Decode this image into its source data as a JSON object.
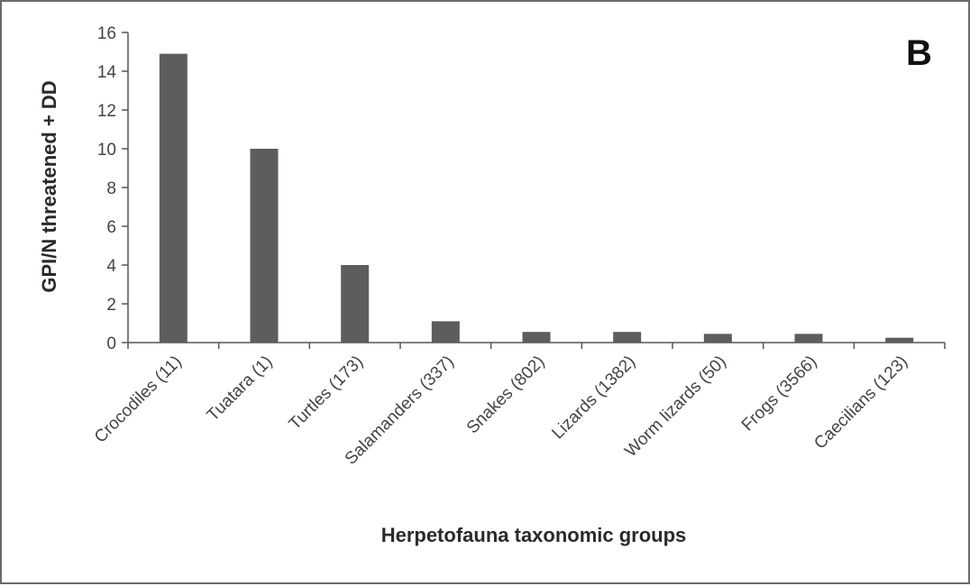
{
  "chart_data": {
    "type": "bar",
    "panel_label": "B",
    "xlabel": "Herpetofauna taxonomic groups",
    "ylabel": "GPI/N threatened + DD",
    "ylim": [
      0,
      16
    ],
    "yticks": [
      "0",
      "2",
      "4",
      "6",
      "8",
      "10",
      "12",
      "14",
      "16"
    ],
    "categories": [
      "Crocodiles (11)",
      "Tuatara (1)",
      "Turtles (173)",
      "Salamanders (337)",
      "Snakes (802)",
      "Lizards (1382)",
      "Worm lizards (50)",
      "Frogs (3566)",
      "Caecilians (123)"
    ],
    "values": [
      14.9,
      10,
      4,
      1.1,
      0.55,
      0.55,
      0.45,
      0.45,
      0.25
    ],
    "bar_color": "#5d5d5d",
    "axis_color": "#555555",
    "grid": false,
    "legend": "none"
  }
}
